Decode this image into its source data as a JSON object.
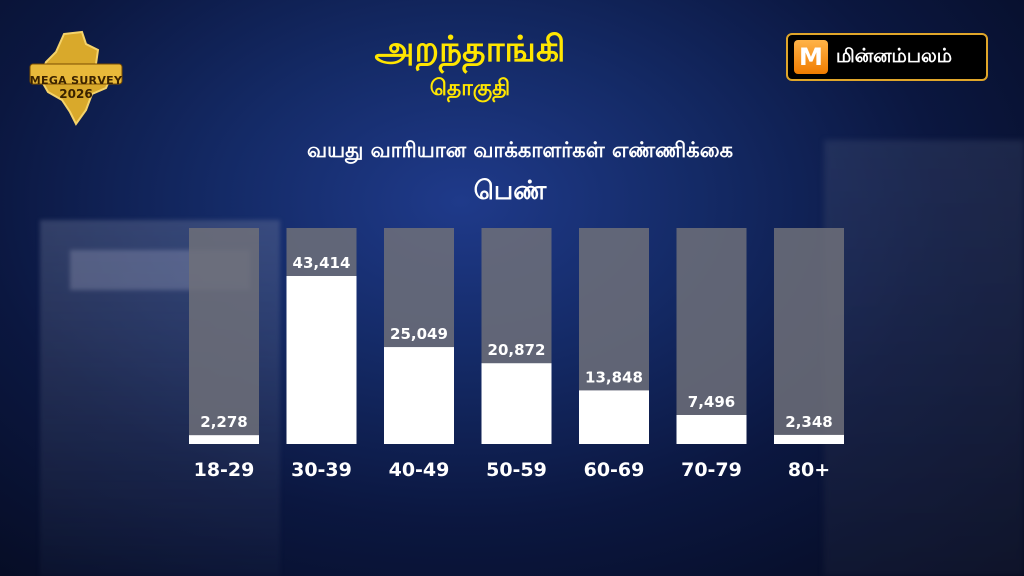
{
  "header": {
    "title": "அறந்தாங்கி",
    "subtitle": "தொகுதி"
  },
  "badge": {
    "line1": "MEGA SURVEY",
    "line2": "2026"
  },
  "logo": {
    "text": "மின்னம்பலம்"
  },
  "colors": {
    "title": "#ffe600",
    "bar_fill": "#ffffff",
    "bar_track": "#6f7079",
    "logo_border": "#e0a62a"
  },
  "chart_data": {
    "type": "bar",
    "title": "வயது வாரியான வாக்காளர்கள் எண்ணிக்கை",
    "subtitle": "பெண்",
    "categories": [
      "18-29",
      "30-39",
      "40-49",
      "50-59",
      "60-69",
      "70-79",
      "80+"
    ],
    "values": [
      2278,
      43414,
      25049,
      20872,
      13848,
      7496,
      2348
    ],
    "value_labels": [
      "2,278",
      "43,414",
      "25,049",
      "20,872",
      "13,848",
      "7,496",
      "2,348"
    ],
    "ylim": [
      0,
      46000
    ],
    "grid": false,
    "legend": "none"
  }
}
